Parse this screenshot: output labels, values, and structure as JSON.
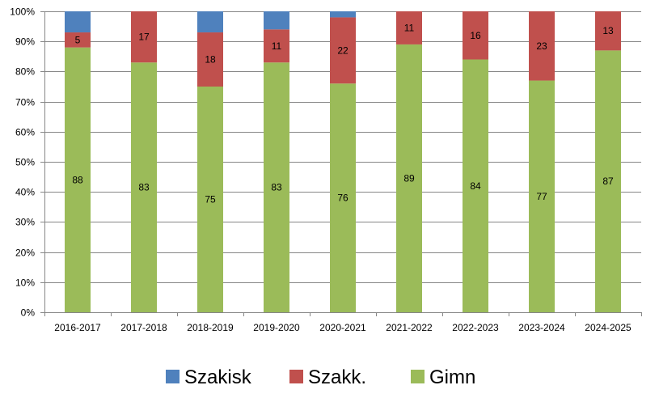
{
  "chart_data": {
    "type": "bar",
    "stacked": true,
    "percent_stacked": true,
    "categories": [
      "2016-2017",
      "2017-2018",
      "2018-2019",
      "2019-2020",
      "2020-2021",
      "2021-2022",
      "2022-2023",
      "2023-2024",
      "2024-2025"
    ],
    "series": [
      {
        "name": "Gimn",
        "color": "#9bbb59",
        "values": [
          88,
          83,
          75,
          83,
          76,
          89,
          84,
          77,
          87
        ],
        "show_labels": true
      },
      {
        "name": "Szakk.",
        "color": "#c0504d",
        "values": [
          5,
          17,
          18,
          11,
          22,
          11,
          16,
          23,
          13
        ],
        "show_labels": true
      },
      {
        "name": "Szakisk",
        "color": "#4f81bd",
        "values": [
          7,
          0,
          7,
          6,
          2,
          0,
          0,
          0,
          0
        ],
        "show_labels": false
      }
    ],
    "y_ticks": [
      "0%",
      "10%",
      "20%",
      "30%",
      "40%",
      "50%",
      "60%",
      "70%",
      "80%",
      "90%",
      "100%"
    ],
    "ylim": [
      0,
      100
    ],
    "grid": true,
    "legend_position": "bottom",
    "legend_order": [
      "Szakisk",
      "Szakk.",
      "Gimn"
    ]
  }
}
